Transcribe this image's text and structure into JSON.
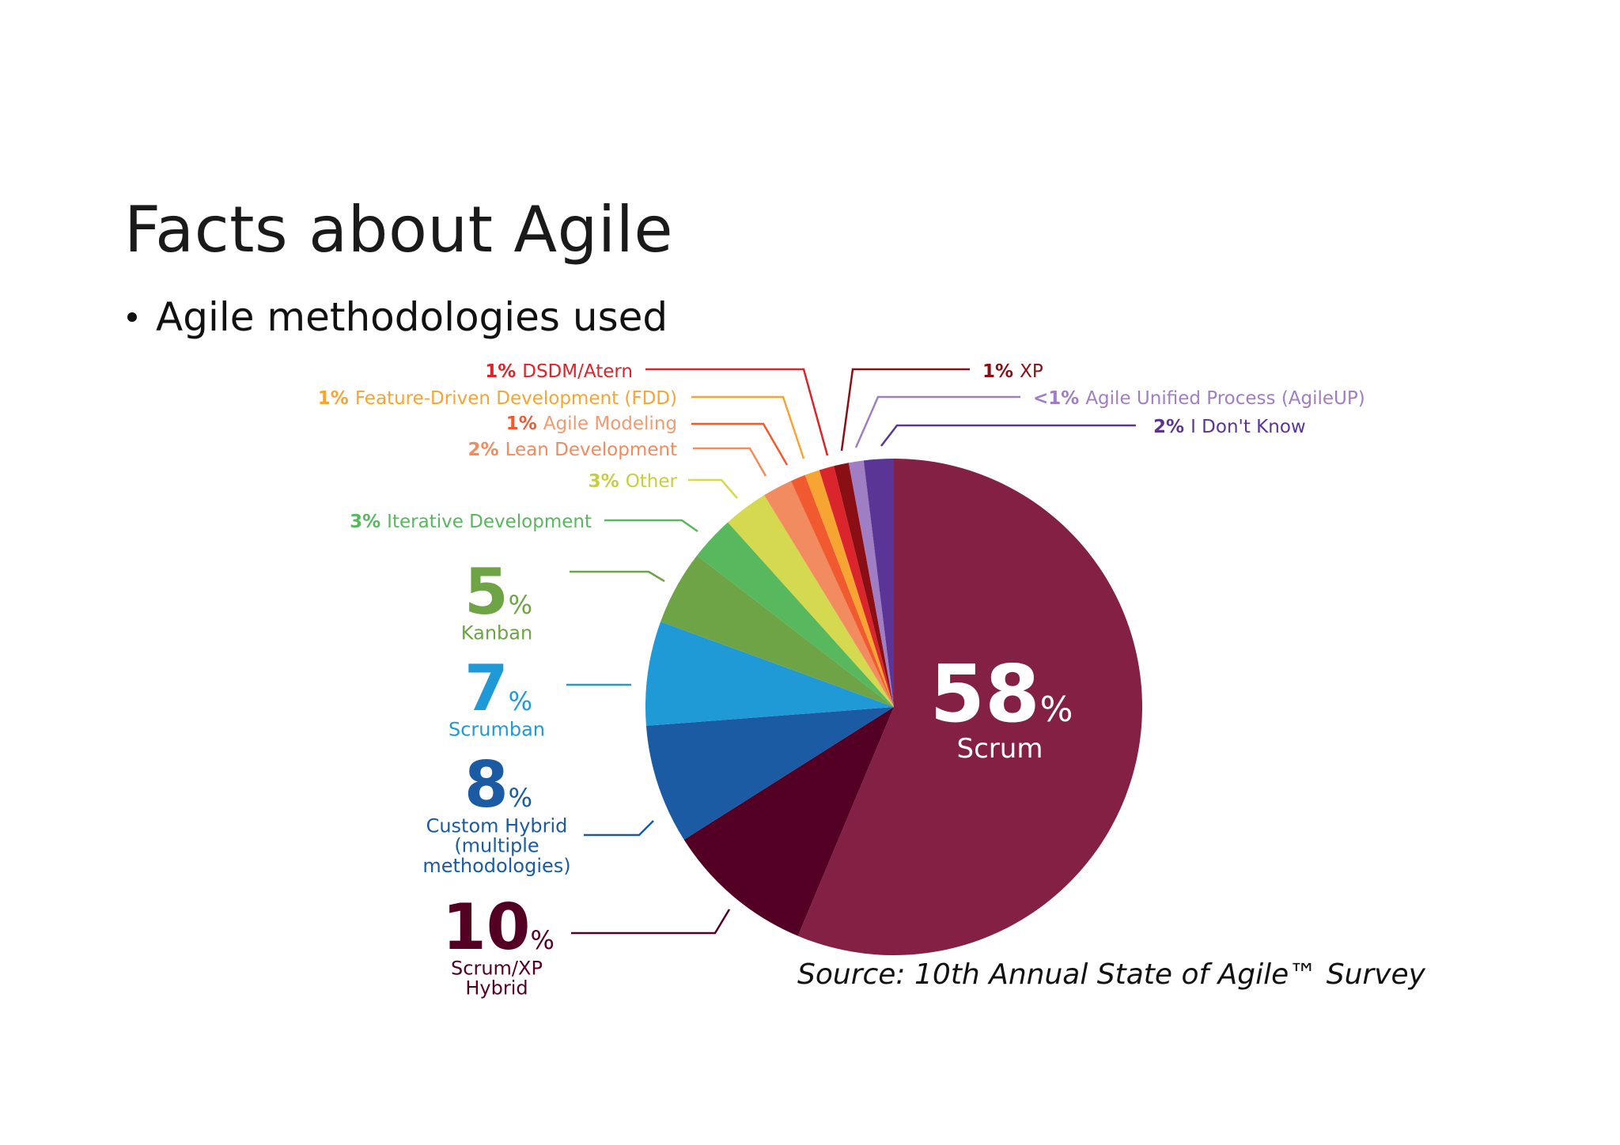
{
  "slide": {
    "title": "Facts about Agile",
    "bullet": "Agile methodologies used",
    "source": "Source: 10th Annual State of Agile™ Survey"
  },
  "chart_data": {
    "type": "pie",
    "title": "",
    "slices": [
      {
        "label": "Scrum",
        "value": 58,
        "display": "58",
        "unit": "%",
        "color": "#832044"
      },
      {
        "label": "Scrum/XP Hybrid",
        "value": 10,
        "display": "10",
        "unit": "%",
        "color": "#540024"
      },
      {
        "label": "Custom Hybrid (multiple methodologies)",
        "value": 8,
        "display": "8",
        "unit": "%",
        "color": "#1a5ba3"
      },
      {
        "label": "Scrumban",
        "value": 7,
        "display": "7",
        "unit": "%",
        "color": "#1f9ad6"
      },
      {
        "label": "Kanban",
        "value": 5,
        "display": "5",
        "unit": "%",
        "color": "#6ea445"
      },
      {
        "label": "Iterative Development",
        "value": 3,
        "display": "3%",
        "color": "#57b85d"
      },
      {
        "label": "Other",
        "value": 3,
        "display": "3%",
        "color": "#d4d94f"
      },
      {
        "label": "Lean Development",
        "value": 2,
        "display": "2%",
        "color": "#f28b5f"
      },
      {
        "label": "Agile Modeling",
        "value": 1,
        "display": "1%",
        "color": "#f05a2e"
      },
      {
        "label": "Feature-Driven Development (FDD)",
        "value": 1,
        "display": "1%",
        "color": "#f7a532"
      },
      {
        "label": "DSDM/Atern",
        "value": 1,
        "display": "1%",
        "color": "#d9252b"
      },
      {
        "label": "XP",
        "value": 1,
        "display": "1%",
        "color": "#8a0f14"
      },
      {
        "label": "Agile Unified Process (AgileUP)",
        "value": 1,
        "display": "<1%",
        "color": "#a07ec4"
      },
      {
        "label": "I Don't Know",
        "value": 2,
        "display": "2%",
        "color": "#5a3596"
      }
    ]
  }
}
